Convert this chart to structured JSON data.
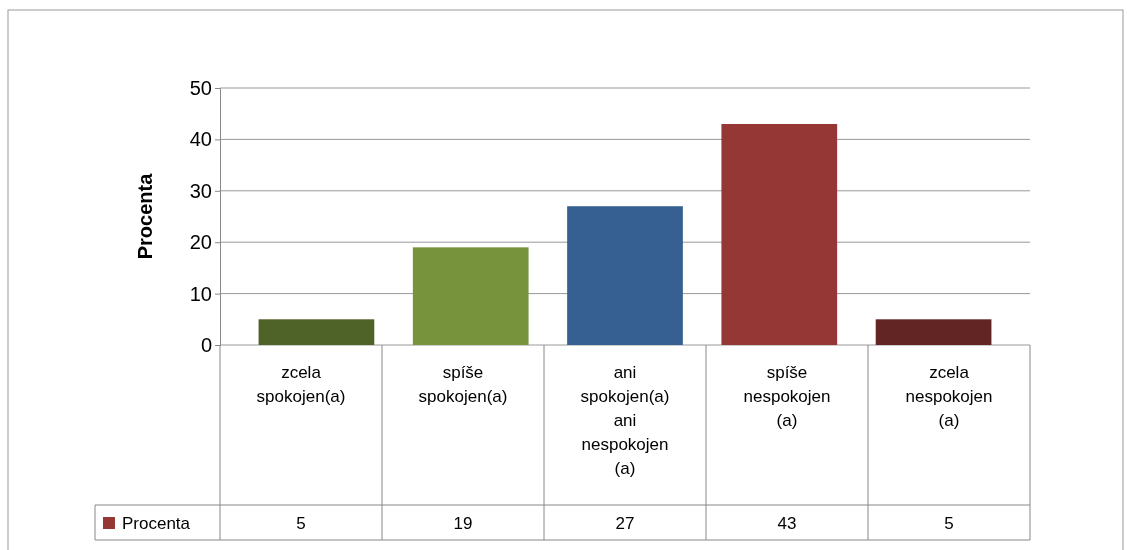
{
  "chart_data": {
    "type": "bar",
    "ylabel": "Procenta",
    "categories": [
      "zcela spokojen(a)",
      "spíše spokojen(a)",
      "ani spokojen(a) ani nespokojen (a)",
      "spíše nespokojen (a)",
      "zcela nespokojen (a)"
    ],
    "series": [
      {
        "name": "Procenta",
        "color": "#953735",
        "colors": [
          "#4f6228",
          "#77933c",
          "#376092",
          "#953735",
          "#632523"
        ],
        "values": [
          5,
          19,
          27,
          43,
          5
        ]
      }
    ],
    "ylim": [
      0,
      50
    ],
    "yticks": [
      0,
      10,
      20,
      30,
      40,
      50
    ],
    "grid": "y",
    "legend": "bottom",
    "data_labels": true
  }
}
